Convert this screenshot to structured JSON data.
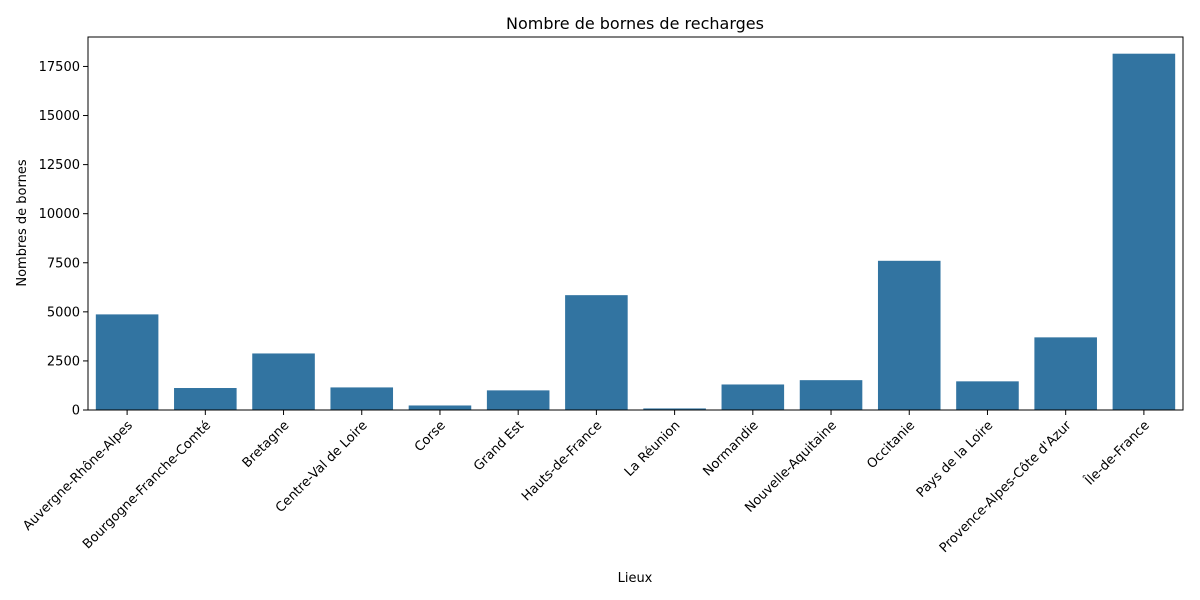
{
  "chart_data": {
    "type": "bar",
    "title": "Nombre de bornes de recharges",
    "xlabel": "Lieux",
    "ylabel": "Nombres de bornes",
    "categories": [
      "Auvergne-Rhône-Alpes",
      "Bourgogne-Franche-Comté",
      "Bretagne",
      "Centre-Val de Loire",
      "Corse",
      "Grand Est",
      "Hauts-de-France",
      "La Réunion",
      "Normandie",
      "Nouvelle-Aquitaine",
      "Occitanie",
      "Pays de la Loire",
      "Provence-Alpes-Côte d'Azur",
      "Île-de-France"
    ],
    "values": [
      4870,
      1120,
      2880,
      1150,
      230,
      1000,
      5850,
      80,
      1300,
      1520,
      7600,
      1460,
      3700,
      18150
    ],
    "ylim": [
      0,
      19000
    ],
    "yticks": [
      0,
      2500,
      5000,
      7500,
      10000,
      12500,
      15000,
      17500
    ],
    "bar_color": "#3274a1",
    "grid": false,
    "legend": "none"
  }
}
